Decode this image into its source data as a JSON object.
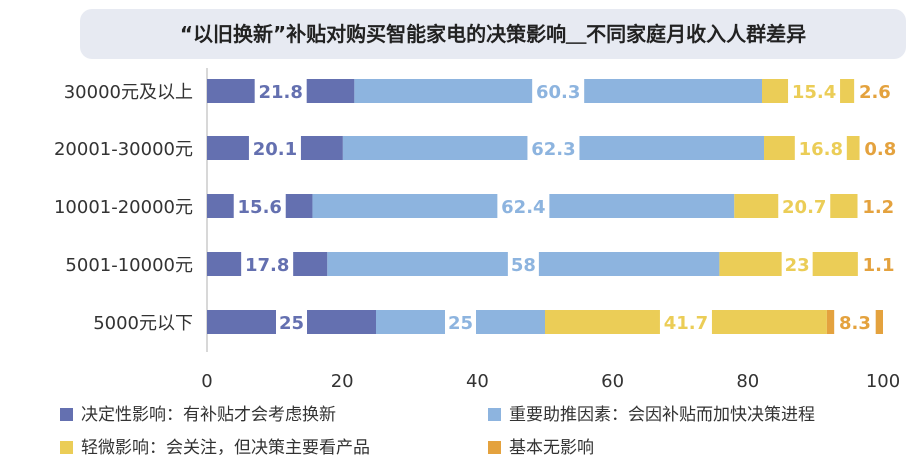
{
  "chart_data": {
    "type": "bar",
    "orientation": "horizontal",
    "stacked": true,
    "title": "“以旧换新”补贴对购买智能家电的决策影响＿不同家庭月收入人群差异",
    "categories": [
      "30000元及以上",
      "20001-30000元",
      "10001-20000元",
      "5001-10000元",
      "5000元以下"
    ],
    "series": [
      {
        "name": "决定性影响：有补贴才会考虑换新",
        "color": "#6470b0",
        "values": [
          21.8,
          20.1,
          15.6,
          17.8,
          25
        ]
      },
      {
        "name": "重要助推因素：会因补贴而加快决策进程",
        "color": "#8db4df",
        "values": [
          60.3,
          62.3,
          62.4,
          58,
          25
        ]
      },
      {
        "name": "轻微影响：会关注，但决策主要看产品",
        "color": "#ebcd57",
        "values": [
          15.4,
          16.8,
          20.7,
          23,
          41.7
        ]
      },
      {
        "name": "基本无影响",
        "color": "#e4a23e",
        "values": [
          2.6,
          0.8,
          1.2,
          1.1,
          8.3
        ]
      }
    ],
    "labels": [
      [
        "21.8",
        "60.3",
        "15.4",
        "2.6"
      ],
      [
        "20.1",
        "62.3",
        "16.8",
        "0.8"
      ],
      [
        "15.6",
        "62.4",
        "20.7",
        "1.2"
      ],
      [
        "17.8",
        "58",
        "23",
        "1.1"
      ],
      [
        "25",
        "25",
        "41.7",
        "8.3"
      ]
    ],
    "xlim": [
      0,
      100
    ],
    "xticks": [
      "0",
      "20",
      "40",
      "60",
      "80",
      "100"
    ],
    "grid": false,
    "legend_position": "bottom"
  }
}
